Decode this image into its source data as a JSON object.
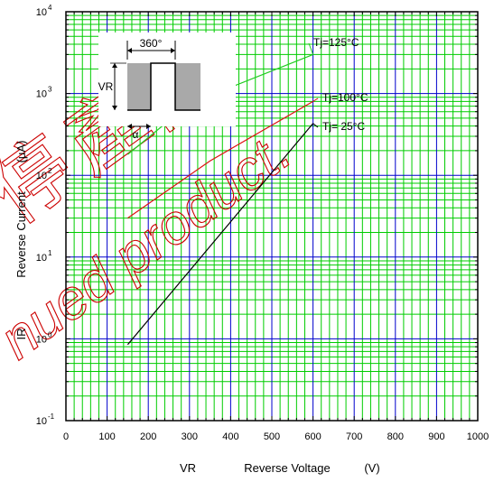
{
  "chart_data": {
    "type": "line",
    "x_axis": {
      "label_symbol": "VR",
      "label_text": "Reverse Voltage",
      "label_unit": "(V)",
      "range": [
        0,
        1000
      ],
      "ticks": [
        0,
        100,
        200,
        300,
        400,
        500,
        600,
        700,
        800,
        900,
        1000
      ],
      "minor_step": 20,
      "scale": "linear"
    },
    "y_axis": {
      "label_symbol": "IR",
      "label_text": "Reverse Current",
      "label_unit": "(μA)",
      "range": [
        0.1,
        10000
      ],
      "scale": "log",
      "decades": [
        {
          "value": 0.1,
          "base": "10",
          "exp": "-1"
        },
        {
          "value": 1,
          "base": "10",
          "exp": "0"
        },
        {
          "value": 10,
          "base": "10",
          "exp": "1"
        },
        {
          "value": 100,
          "base": "10",
          "exp": "2"
        },
        {
          "value": 1000,
          "base": "10",
          "exp": "3"
        },
        {
          "value": 10000,
          "base": "10",
          "exp": "4"
        }
      ]
    },
    "grid": true,
    "series": [
      {
        "name": "Tj=125°C",
        "color": "#22cc22",
        "points": [
          [
            150,
            180
          ],
          [
            300,
            750
          ],
          [
            600,
            3000
          ]
        ]
      },
      {
        "name": "Tj=100°C",
        "color": "#dd1111",
        "points": [
          [
            150,
            30
          ],
          [
            350,
            150
          ],
          [
            600,
            800
          ]
        ]
      },
      {
        "name": "Tj= 25°C",
        "color": "#000000",
        "points": [
          [
            150,
            0.85
          ],
          [
            600,
            430
          ]
        ]
      }
    ],
    "inset": {
      "angle_label": "360°",
      "vr_label": "VR",
      "alpha_label": "α"
    },
    "watermark": {
      "text": "nued product.",
      "chars": "停產品"
    },
    "colors": {
      "grid_blue": "#0000cc",
      "grid_green": "#00cc00",
      "watermark": "#cc0000",
      "inset_fill": "#a9a9a9"
    }
  }
}
